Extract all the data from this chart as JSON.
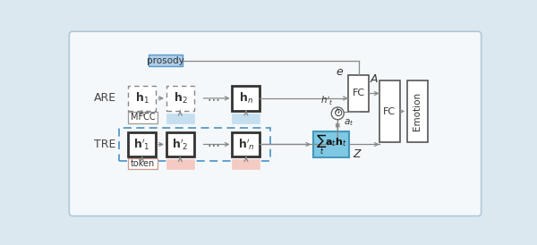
{
  "fig_bg": "#dce8f0",
  "panel_bg": "#f5f8fb",
  "panel_edge": "#b0c8d8",
  "box_white": "#ffffff",
  "box_blue_prosody": "#aecde8",
  "box_blue_fill": "#c5dff0",
  "box_pink_fill": "#f5cac3",
  "box_cyan_sum": "#7ec8e3",
  "box_cyan_edge": "#4499bb",
  "arrow_color": "#888888",
  "text_color": "#333333",
  "label_ARE": "ARE",
  "label_TRE": "TRE",
  "label_prosody": "prosody",
  "label_mfcc": "MFCC",
  "label_token": "token",
  "label_FC": "FC",
  "label_Emotion": "Emotion",
  "label_A": "$\\mathit{A}$",
  "label_Z": "$\\mathit{Z}$",
  "label_e": "$\\mathit{e}$",
  "label_ht": "$h'_t$",
  "label_at": "$a_t$",
  "label_h1": "$\\mathbf{h}_1$",
  "label_h2": "$\\mathbf{h}_2$",
  "label_hn": "$\\mathbf{h}_n$",
  "label_hp1": "$\\mathbf{h}'_1$",
  "label_hp2": "$\\mathbf{h}'_2$",
  "label_hpn": "$\\mathbf{h}'_n$",
  "label_dots": "$\\cdots$",
  "label_sum": "$\\sum_t a_t h_t$"
}
